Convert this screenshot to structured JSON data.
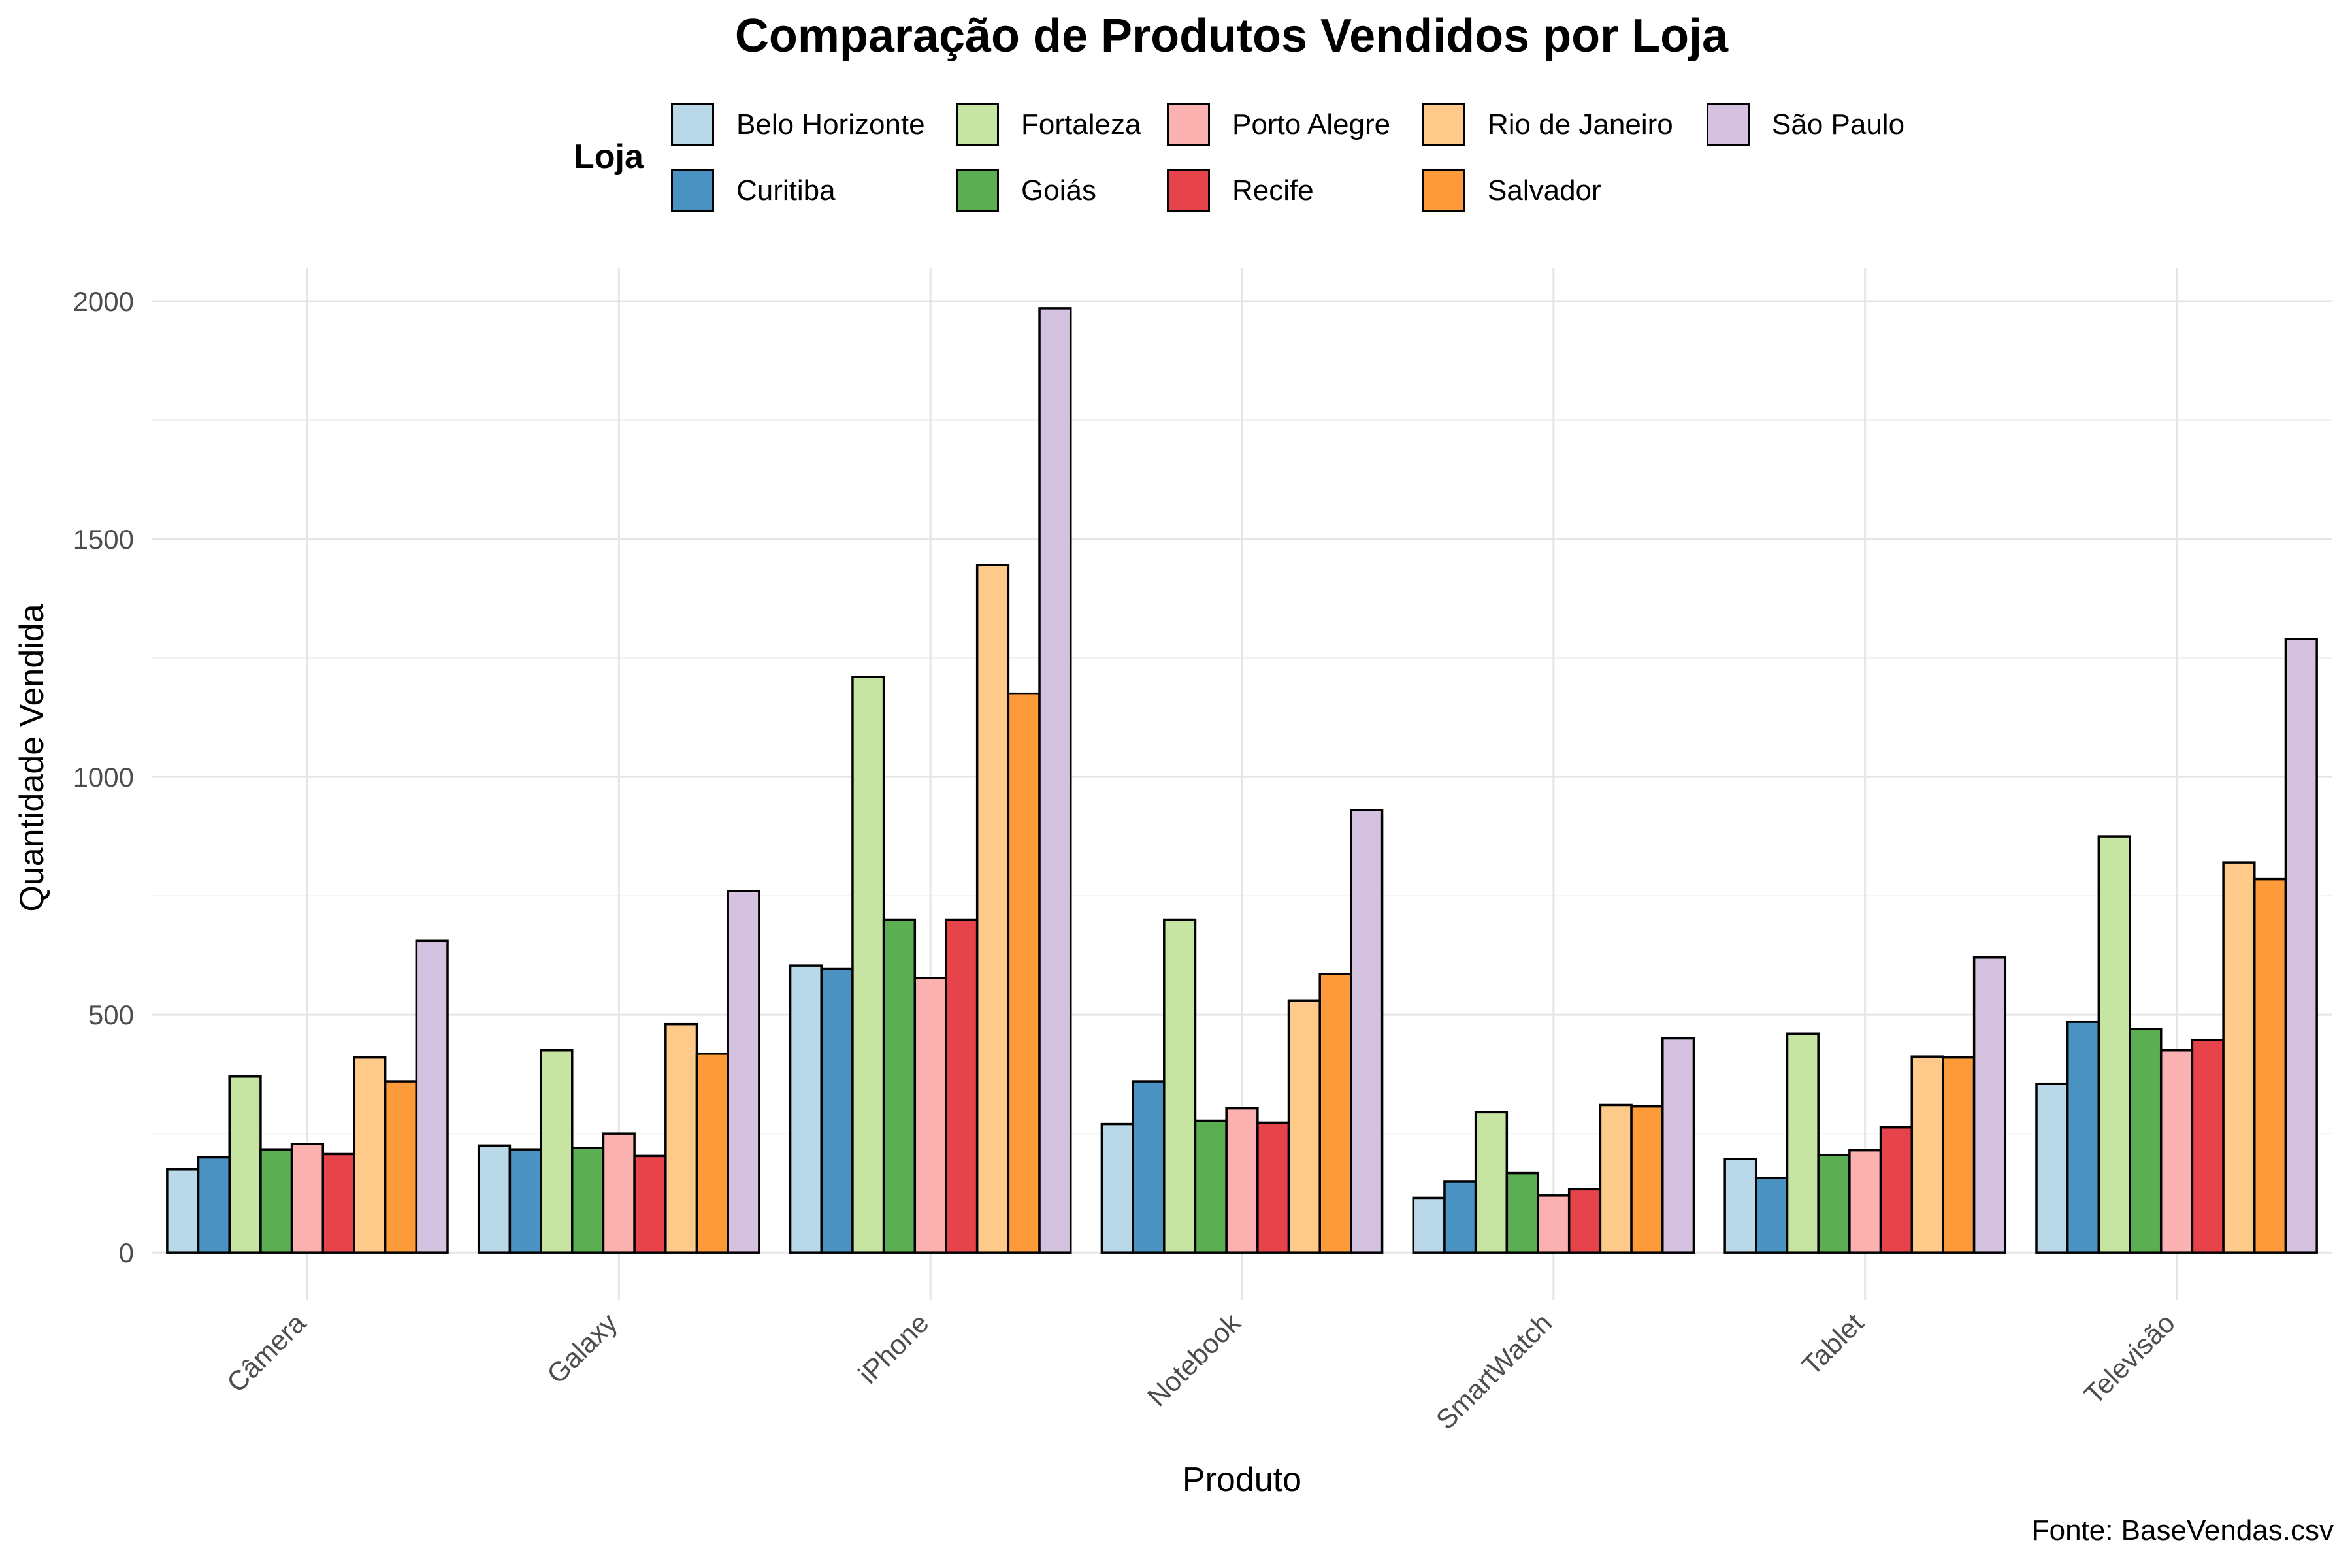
{
  "chart_data": {
    "type": "bar",
    "title": "Comparação de Produtos Vendidos por Loja",
    "xlabel": "Produto",
    "ylabel": "Quantidade Vendida",
    "caption": "Fonte: BaseVendas.csv",
    "legend_title": "Loja",
    "legend_position": "top",
    "ylim": [
      -100,
      2070
    ],
    "yticks": [
      0,
      500,
      1000,
      1500,
      2000
    ],
    "grid": true,
    "categories": [
      "Câmera",
      "Galaxy",
      "iPhone",
      "Notebook",
      "SmartWatch",
      "Tablet",
      "Televisão"
    ],
    "series": [
      {
        "name": "Belo Horizonte",
        "color": "#B9D9E9",
        "values": [
          175,
          225,
          603,
          270,
          115,
          197,
          355
        ]
      },
      {
        "name": "Curitiba",
        "color": "#4992C2",
        "values": [
          200,
          217,
          597,
          360,
          150,
          157,
          485
        ]
      },
      {
        "name": "Fortaleza",
        "color": "#C6E5A3",
        "values": [
          370,
          425,
          1210,
          700,
          295,
          460,
          875
        ]
      },
      {
        "name": "Goiás",
        "color": "#5BAF52",
        "values": [
          217,
          220,
          700,
          277,
          167,
          205,
          470
        ]
      },
      {
        "name": "Porto Alegre",
        "color": "#FAB1B0",
        "values": [
          228,
          250,
          577,
          303,
          120,
          215,
          425
        ]
      },
      {
        "name": "Recife",
        "color": "#E6434A",
        "values": [
          207,
          203,
          700,
          273,
          133,
          263,
          447
        ]
      },
      {
        "name": "Rio de Janeiro",
        "color": "#FDCA8A",
        "values": [
          410,
          480,
          1445,
          530,
          310,
          412,
          820
        ]
      },
      {
        "name": "Salvador",
        "color": "#FD9A3A",
        "values": [
          360,
          418,
          1175,
          585,
          307,
          410,
          785
        ]
      },
      {
        "name": "São Paulo",
        "color": "#D4C2E0",
        "values": [
          655,
          760,
          1985,
          930,
          450,
          620,
          1290
        ]
      }
    ]
  }
}
